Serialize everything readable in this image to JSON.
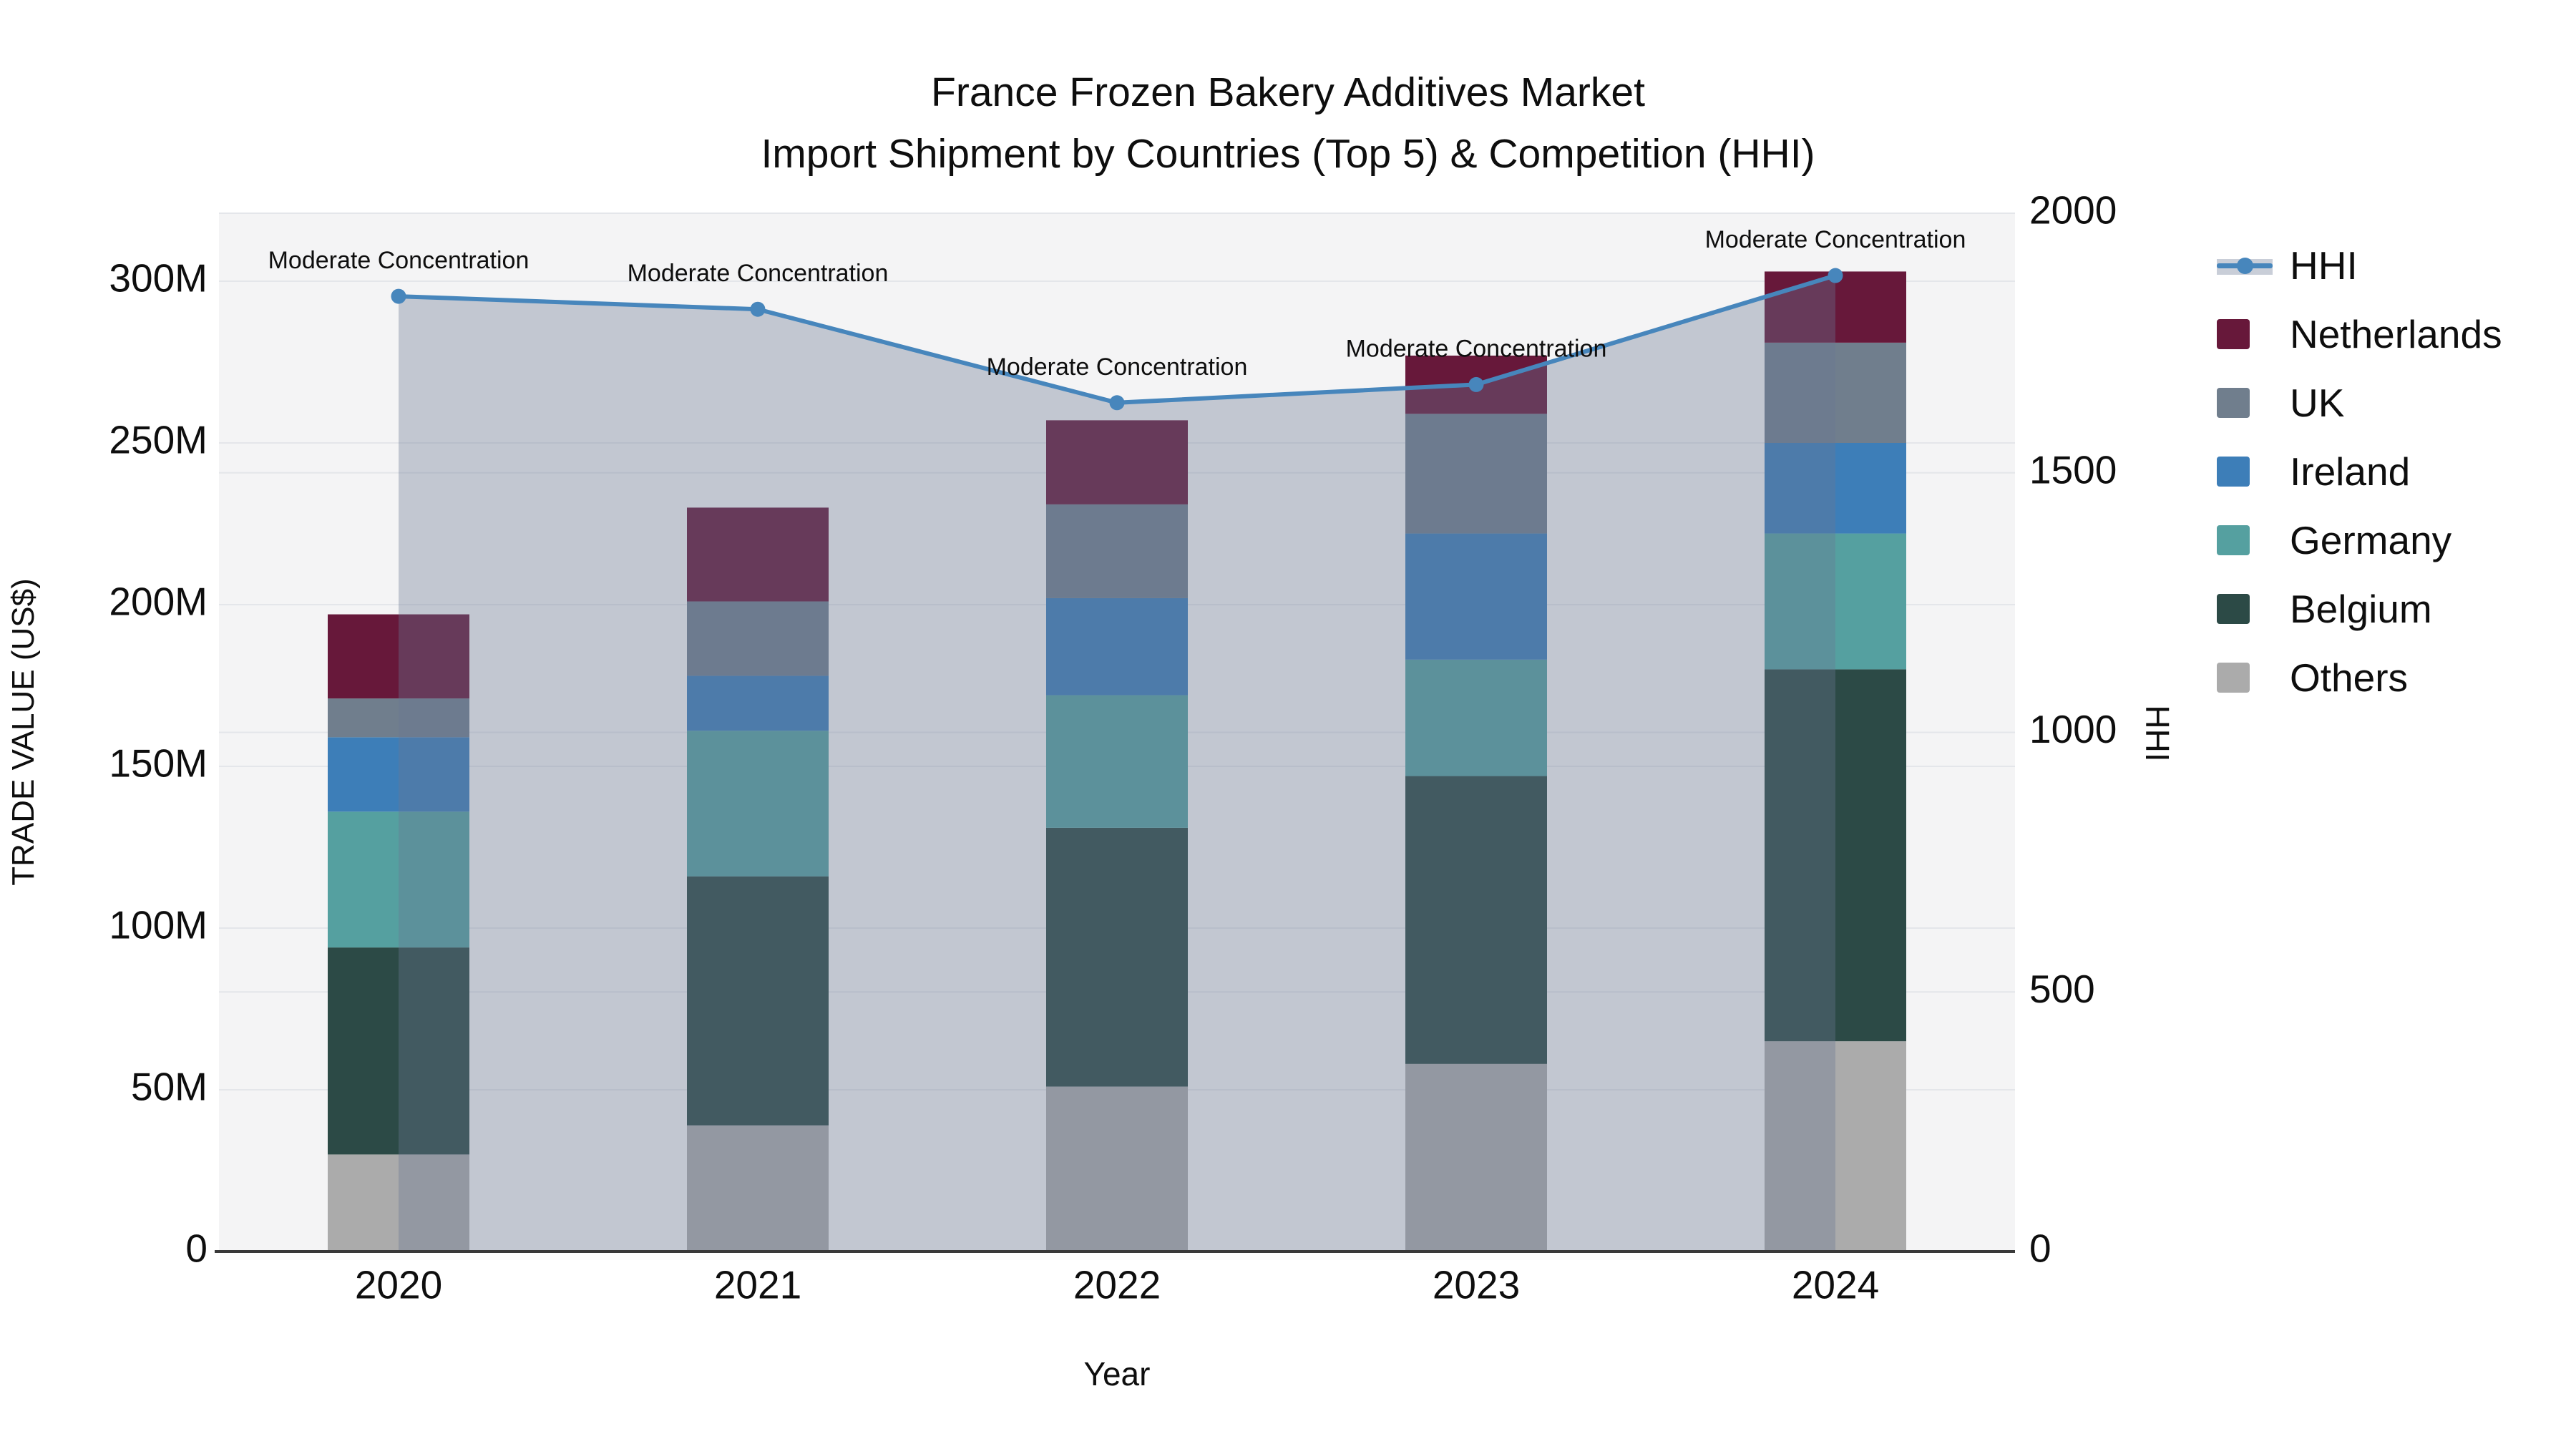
{
  "title": {
    "line1": "France Frozen Bakery Additives Market",
    "line2": "Import Shipment by Countries (Top 5) & Competition (HHI)"
  },
  "axes": {
    "y_left": {
      "title": "TRADE VALUE (US$)",
      "ticks": [
        {
          "value": 0,
          "label": "0"
        },
        {
          "value": 50,
          "label": "50M"
        },
        {
          "value": 100,
          "label": "100M"
        },
        {
          "value": 150,
          "label": "150M"
        },
        {
          "value": 200,
          "label": "200M"
        },
        {
          "value": 250,
          "label": "250M"
        },
        {
          "value": 300,
          "label": "300M"
        }
      ]
    },
    "y_right": {
      "title": "HHI",
      "ticks": [
        {
          "value": 0,
          "label": "0"
        },
        {
          "value": 500,
          "label": "500"
        },
        {
          "value": 1000,
          "label": "1000"
        },
        {
          "value": 1500,
          "label": "1500"
        },
        {
          "value": 2000,
          "label": "2000"
        }
      ]
    },
    "x": {
      "title": "Year"
    }
  },
  "colors": {
    "plot_bg": "#F4F4F5",
    "grid": "#E4E6EA",
    "axis_line": "#3A3A3A",
    "hhi_line": "#4786BC",
    "hhi_fill": "rgba(104,118,146,0.36)",
    "netherlands": "#67183A",
    "uk": "#707E8D",
    "ireland": "#3D7EB8",
    "germany": "#55A0A0",
    "belgium": "#2C4A46",
    "others": "#ABABAB"
  },
  "legend": {
    "items": [
      {
        "label": "HHI",
        "type": "line",
        "color": "#4786BC"
      },
      {
        "label": "Netherlands",
        "type": "swatch",
        "color": "#67183A"
      },
      {
        "label": "UK",
        "type": "swatch",
        "color": "#707E8D"
      },
      {
        "label": "Ireland",
        "type": "swatch",
        "color": "#3D7EB8"
      },
      {
        "label": "Germany",
        "type": "swatch",
        "color": "#55A0A0"
      },
      {
        "label": "Belgium",
        "type": "swatch",
        "color": "#2C4A46"
      },
      {
        "label": "Others",
        "type": "swatch",
        "color": "#ABABAB"
      }
    ]
  },
  "chart_data": {
    "type": "bar+line",
    "title": "France Frozen Bakery Additives Market — Import Shipment by Countries (Top 5) & Competition (HHI)",
    "categories": [
      "2020",
      "2021",
      "2022",
      "2023",
      "2024"
    ],
    "xlabel": "Year",
    "ylabel_left": "TRADE VALUE (US$)",
    "ylabel_right": "HHI",
    "ylim_left": [
      0,
      300
    ],
    "ylim_right": [
      0,
      2000
    ],
    "unit": "Million US$",
    "stack_order_bottom_to_top": [
      "Others",
      "Belgium",
      "Germany",
      "Ireland",
      "UK",
      "Netherlands"
    ],
    "series": [
      {
        "name": "Others",
        "color": "#ABABAB",
        "values": [
          30,
          39,
          51,
          58,
          65
        ]
      },
      {
        "name": "Belgium",
        "color": "#2C4A46",
        "values": [
          64,
          77,
          80,
          89,
          115
        ]
      },
      {
        "name": "Germany",
        "color": "#55A0A0",
        "values": [
          42,
          45,
          41,
          36,
          42
        ]
      },
      {
        "name": "Ireland",
        "color": "#3D7EB8",
        "values": [
          23,
          17,
          30,
          39,
          28
        ]
      },
      {
        "name": "UK",
        "color": "#707E8D",
        "values": [
          12,
          23,
          29,
          37,
          31
        ]
      },
      {
        "name": "Netherlands",
        "color": "#67183A",
        "values": [
          26,
          29,
          26,
          18,
          22
        ]
      }
    ],
    "bar_totals": [
      197,
      230,
      257,
      277,
      303
    ],
    "hhi": {
      "name": "HHI",
      "color": "#4786BC",
      "values": [
        1840,
        1815,
        1635,
        1670,
        1880
      ],
      "point_labels": [
        "Moderate Concentration",
        "Moderate Concentration",
        "Moderate Concentration",
        "Moderate Concentration",
        "Moderate Concentration"
      ]
    },
    "legend_position": "right",
    "grid": true
  }
}
